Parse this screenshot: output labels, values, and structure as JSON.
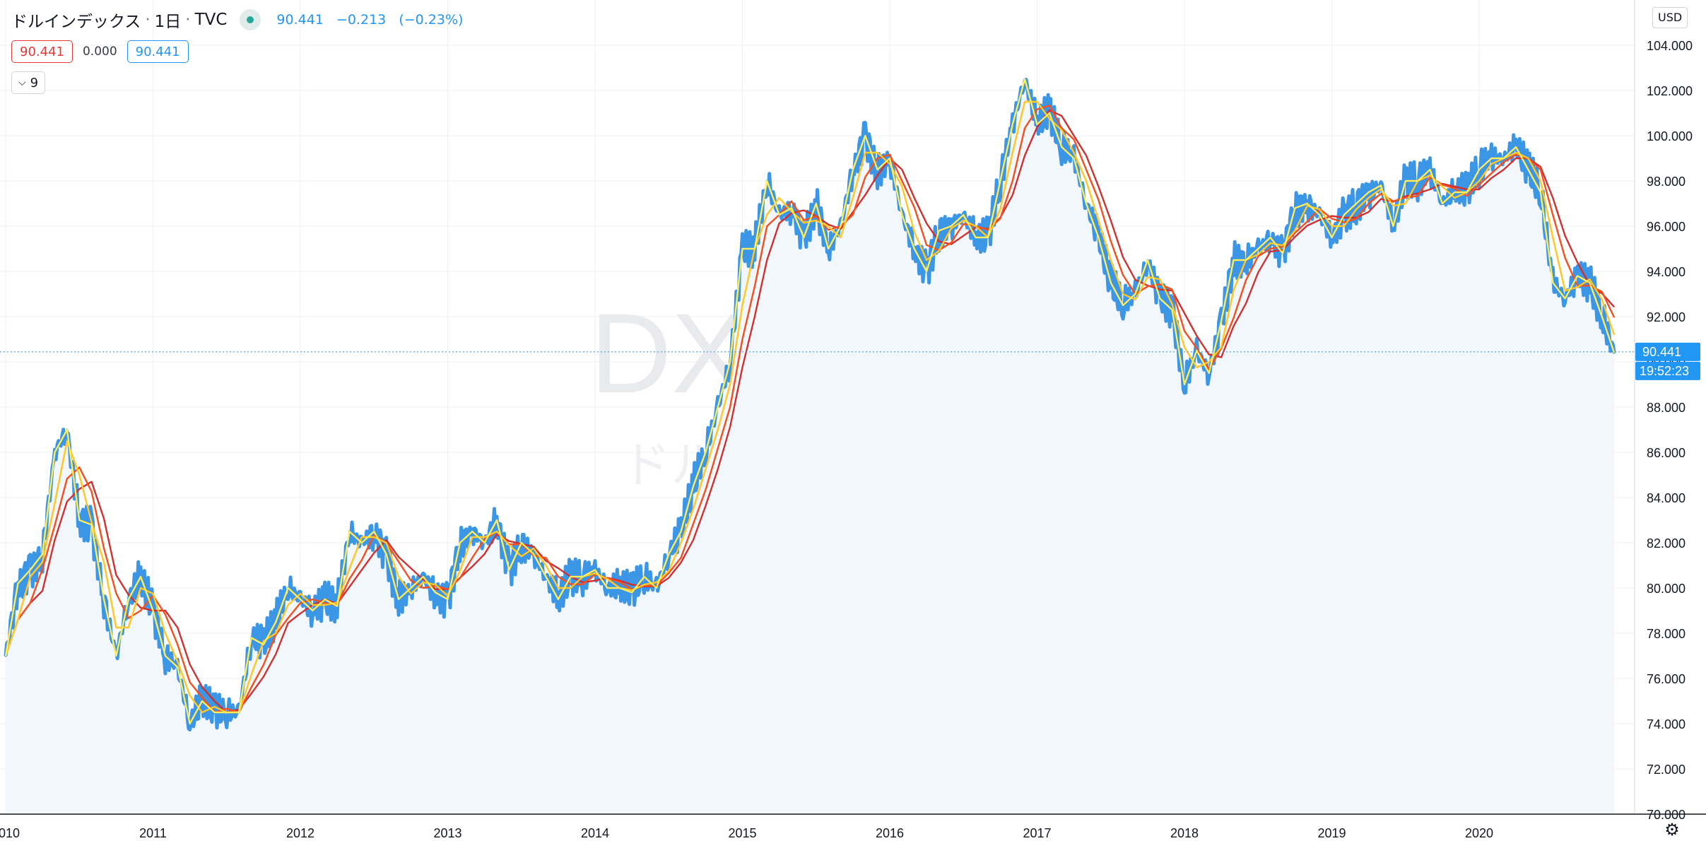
{
  "legend": {
    "symbol_name": "ドルインデックス",
    "interval": "1日",
    "exchange": "TVC",
    "last": "90.441",
    "change": "−0.213",
    "change_pct": "(−0.23%)"
  },
  "indicator": {
    "value_left": "90.441",
    "value_mid": "0.000",
    "value_right": "90.441",
    "collapse_count": "9"
  },
  "watermark": {
    "line1": "DXY, 1日",
    "line2": "ドルインデックス"
  },
  "price_scale": {
    "currency": "USD",
    "last_price_label": "90.441",
    "countdown_label": "19:52:23"
  },
  "icons": {
    "settings": "gear-icon",
    "collapse": "chevron-down-icon",
    "status": "market-status-dot-icon"
  },
  "colors": {
    "price_line": "#3c96e6",
    "area_fill": "#f2f7fc",
    "ribbon": [
      "#b71c1c",
      "#d32f2f",
      "#e53935",
      "#ef5350",
      "#f4511e",
      "#fb8c00",
      "#ffa726",
      "#ffca28",
      "#ffd54f",
      "#ffee58"
    ],
    "grid": "#eef0f3",
    "last_label_bg": "#2196f3"
  },
  "chart_data": {
    "type": "area",
    "symbol": "DXY",
    "xlabel": "",
    "ylabel": "",
    "ylim": [
      70,
      106
    ],
    "y_ticks": [
      "70.000",
      "72.000",
      "74.000",
      "76.000",
      "78.000",
      "80.000",
      "82.000",
      "84.000",
      "86.000",
      "88.000",
      "90.000",
      "92.000",
      "94.000",
      "96.000",
      "98.000",
      "100.000",
      "102.000",
      "104.000"
    ],
    "x_ticks": [
      "2010",
      "2011",
      "2012",
      "2013",
      "2014",
      "2015",
      "2016",
      "2017",
      "2018",
      "2019",
      "2020"
    ],
    "x": [
      "2010-01",
      "2010-02",
      "2010-03",
      "2010-04",
      "2010-05",
      "2010-06",
      "2010-07",
      "2010-08",
      "2010-09",
      "2010-10",
      "2010-11",
      "2010-12",
      "2011-01",
      "2011-02",
      "2011-03",
      "2011-04",
      "2011-05",
      "2011-06",
      "2011-07",
      "2011-08",
      "2011-09",
      "2011-10",
      "2011-11",
      "2011-12",
      "2012-01",
      "2012-02",
      "2012-03",
      "2012-04",
      "2012-05",
      "2012-06",
      "2012-07",
      "2012-08",
      "2012-09",
      "2012-10",
      "2012-11",
      "2012-12",
      "2013-01",
      "2013-02",
      "2013-03",
      "2013-04",
      "2013-05",
      "2013-06",
      "2013-07",
      "2013-08",
      "2013-09",
      "2013-10",
      "2013-11",
      "2013-12",
      "2014-01",
      "2014-02",
      "2014-03",
      "2014-04",
      "2014-05",
      "2014-06",
      "2014-07",
      "2014-08",
      "2014-09",
      "2014-10",
      "2014-11",
      "2014-12",
      "2015-01",
      "2015-02",
      "2015-03",
      "2015-04",
      "2015-05",
      "2015-06",
      "2015-07",
      "2015-08",
      "2015-09",
      "2015-10",
      "2015-11",
      "2015-12",
      "2016-01",
      "2016-02",
      "2016-03",
      "2016-04",
      "2016-05",
      "2016-06",
      "2016-07",
      "2016-08",
      "2016-09",
      "2016-10",
      "2016-11",
      "2016-12",
      "2017-01",
      "2017-02",
      "2017-03",
      "2017-04",
      "2017-05",
      "2017-06",
      "2017-07",
      "2017-08",
      "2017-09",
      "2017-10",
      "2017-11",
      "2017-12",
      "2018-01",
      "2018-02",
      "2018-03",
      "2018-04",
      "2018-05",
      "2018-06",
      "2018-07",
      "2018-08",
      "2018-09",
      "2018-10",
      "2018-11",
      "2018-12",
      "2019-01",
      "2019-02",
      "2019-03",
      "2019-04",
      "2019-05",
      "2019-06",
      "2019-07",
      "2019-08",
      "2019-09",
      "2019-10",
      "2019-11",
      "2019-12",
      "2020-01",
      "2020-02",
      "2020-03",
      "2020-04",
      "2020-05",
      "2020-06",
      "2020-07",
      "2020-08",
      "2020-09",
      "2020-10",
      "2020-11",
      "2020-12"
    ],
    "series": [
      {
        "values": [
          77.0,
          80.2,
          80.8,
          81.5,
          86.0,
          87.0,
          83.0,
          82.8,
          79.5,
          77.0,
          79.5,
          80.5,
          79.0,
          77.0,
          76.5,
          74.0,
          75.0,
          74.5,
          74.5,
          74.5,
          77.8,
          77.5,
          78.5,
          80.0,
          79.5,
          79.0,
          79.5,
          79.2,
          82.5,
          82.0,
          82.5,
          81.5,
          79.5,
          80.0,
          80.5,
          79.8,
          79.5,
          82.0,
          82.5,
          82.0,
          83.0,
          80.8,
          82.0,
          81.5,
          80.5,
          79.5,
          80.5,
          80.5,
          80.8,
          80.0,
          80.0,
          79.8,
          80.5,
          80.0,
          81.5,
          82.5,
          84.5,
          86.0,
          88.0,
          90.0,
          95.0,
          95.0,
          98.0,
          96.5,
          96.8,
          95.5,
          97.0,
          95.0,
          96.0,
          98.5,
          100.0,
          98.5,
          99.0,
          96.5,
          95.0,
          94.0,
          95.8,
          96.0,
          96.5,
          95.5,
          95.5,
          98.0,
          100.5,
          102.5,
          100.5,
          101.0,
          99.5,
          99.0,
          97.0,
          95.5,
          93.5,
          92.5,
          93.0,
          94.5,
          92.8,
          92.3,
          89.0,
          90.5,
          89.5,
          91.8,
          94.5,
          94.5,
          95.0,
          95.5,
          94.8,
          96.8,
          97.0,
          96.5,
          95.5,
          96.5,
          97.0,
          97.5,
          97.8,
          96.0,
          98.0,
          98.0,
          98.5,
          97.0,
          97.5,
          97.5,
          98.5,
          99.0,
          99.0,
          99.5,
          98.5,
          97.5,
          93.5,
          92.8,
          93.8,
          93.5,
          92.0,
          90.4
        ]
      }
    ],
    "last_value": 90.441
  }
}
